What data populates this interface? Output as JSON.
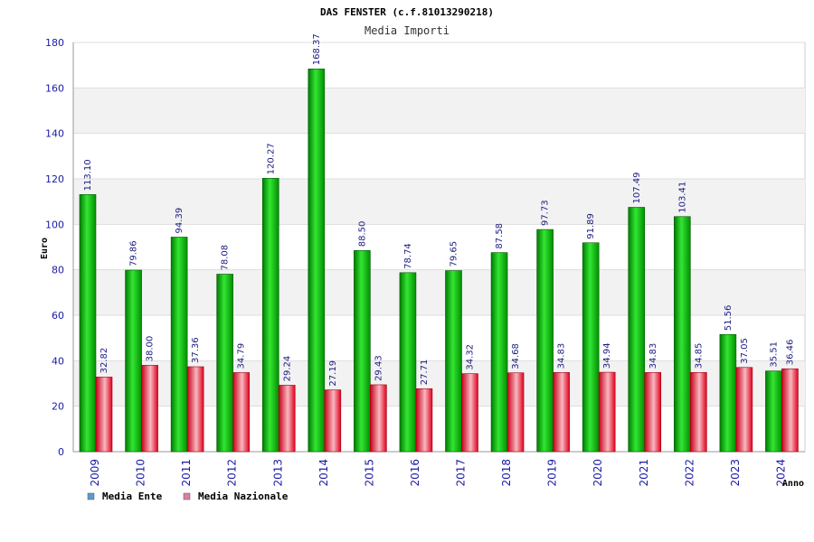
{
  "chart_data": {
    "type": "bar",
    "title": "DAS FENSTER (c.f.81013290218)",
    "subtitle": "Media Importi",
    "xlabel": "Anno",
    "ylabel": "Euro",
    "ylim": [
      0,
      180
    ],
    "yticks": [
      0,
      20,
      40,
      60,
      80,
      100,
      120,
      140,
      160,
      180
    ],
    "grid": true,
    "legend_position": "bottom-left",
    "categories": [
      "2009",
      "2010",
      "2011",
      "2012",
      "2013",
      "2014",
      "2015",
      "2016",
      "2017",
      "2018",
      "2019",
      "2020",
      "2021",
      "2022",
      "2023",
      "2024"
    ],
    "series": [
      {
        "name": "Media Ente",
        "bar_color": "#00b400",
        "legend_color": "#5b9bd5",
        "values": [
          113.1,
          79.86,
          94.39,
          78.08,
          120.27,
          168.37,
          88.5,
          78.74,
          79.65,
          87.58,
          97.73,
          91.89,
          107.49,
          103.41,
          51.56,
          35.51
        ],
        "labels": [
          "113.10",
          "79.86",
          "94.39",
          "78.08",
          "120.27",
          "168.37",
          "88.50",
          "78.74",
          "79.65",
          "87.58",
          "97.73",
          "91.89",
          "107.49",
          "103.41",
          "51.56",
          "35.51"
        ]
      },
      {
        "name": "Media Nazionale",
        "bar_color": "#e8001c",
        "legend_color": "#e27ca8",
        "values": [
          32.82,
          38.0,
          37.36,
          34.79,
          29.24,
          27.19,
          29.43,
          27.71,
          34.32,
          34.68,
          34.83,
          34.94,
          34.83,
          34.85,
          37.05,
          36.46
        ],
        "labels": [
          "32.82",
          "38.00",
          "37.36",
          "34.79",
          "29.24",
          "27.19",
          "29.43",
          "27.71",
          "34.32",
          "34.68",
          "34.83",
          "34.94",
          "34.83",
          "34.85",
          "37.05",
          "36.46"
        ]
      }
    ]
  },
  "colors": {
    "axis_text": "#1a1aa6",
    "value_label": "#1a1a80",
    "grid_band": "#f2f2f2",
    "grid_line": "#dddddd"
  }
}
